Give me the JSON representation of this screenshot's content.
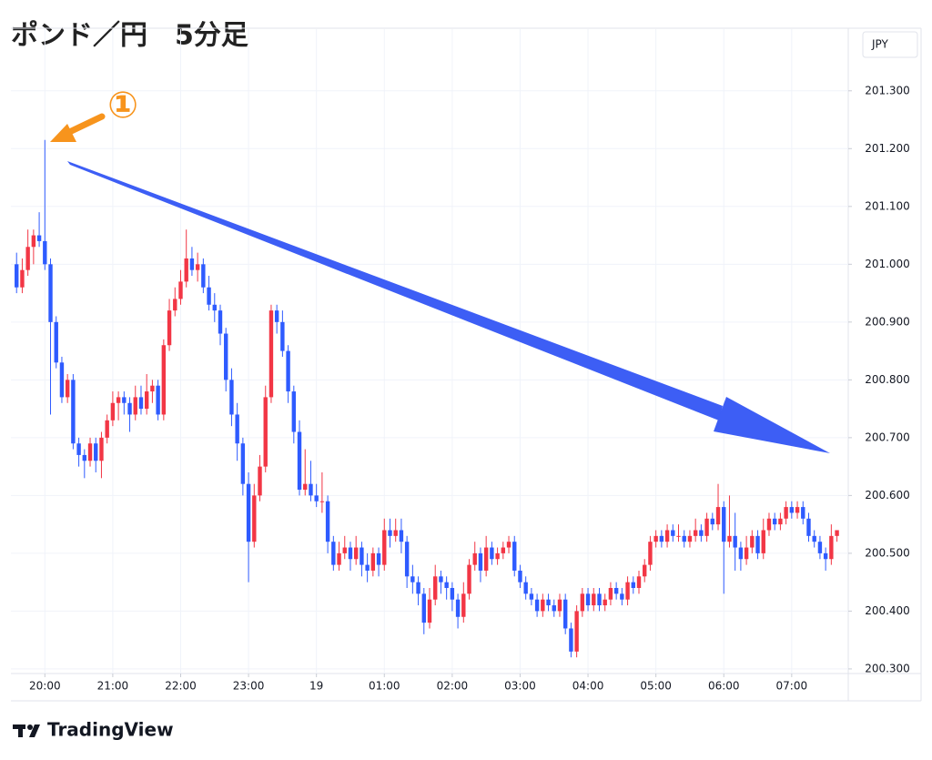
{
  "chart_data": {
    "type": "candlestick",
    "title": "ポンド／円　5分足",
    "currency": "JPY",
    "annotation": "①",
    "brand": "TradingView",
    "up_color": "#f23645",
    "down_color": "#2e5bff",
    "grid": true,
    "xlim": [
      -1,
      147
    ],
    "ylim": [
      200.292,
      201.328
    ],
    "yticks": [
      {
        "value": 200.3,
        "label": "200.300"
      },
      {
        "value": 200.4,
        "label": "200.400"
      },
      {
        "value": 200.5,
        "label": "200.500"
      },
      {
        "value": 200.6,
        "label": "200.600"
      },
      {
        "value": 200.7,
        "label": "200.700"
      },
      {
        "value": 200.8,
        "label": "200.800"
      },
      {
        "value": 200.9,
        "label": "200.900"
      },
      {
        "value": 201.0,
        "label": "201.000"
      },
      {
        "value": 201.1,
        "label": "201.100"
      },
      {
        "value": 201.2,
        "label": "201.200"
      },
      {
        "value": 201.3,
        "label": "201.300"
      }
    ],
    "xticks": [
      {
        "value": 5,
        "label": "20:00"
      },
      {
        "value": 17,
        "label": "21:00"
      },
      {
        "value": 29,
        "label": "22:00"
      },
      {
        "value": 41,
        "label": "23:00"
      },
      {
        "value": 53,
        "label": "19"
      },
      {
        "value": 65,
        "label": "01:00"
      },
      {
        "value": 77,
        "label": "02:00"
      },
      {
        "value": 89,
        "label": "03:00"
      },
      {
        "value": 101,
        "label": "04:00"
      },
      {
        "value": 113,
        "label": "05:00"
      },
      {
        "value": 125,
        "label": "06:00"
      },
      {
        "value": 137,
        "label": "07:00"
      }
    ],
    "ohlc": [
      [
        201.0,
        201.02,
        200.95,
        200.96
      ],
      [
        200.96,
        201.01,
        200.95,
        200.99
      ],
      [
        200.99,
        201.06,
        200.98,
        201.03
      ],
      [
        201.03,
        201.06,
        201.0,
        201.05
      ],
      [
        201.05,
        201.09,
        201.03,
        201.04
      ],
      [
        201.04,
        201.215,
        200.99,
        201.0
      ],
      [
        201.0,
        201.01,
        200.74,
        200.9
      ],
      [
        200.9,
        200.91,
        200.82,
        200.83
      ],
      [
        200.83,
        200.84,
        200.76,
        200.77
      ],
      [
        200.77,
        200.81,
        200.76,
        200.8
      ],
      [
        200.8,
        200.81,
        200.68,
        200.69
      ],
      [
        200.69,
        200.7,
        200.65,
        200.67
      ],
      [
        200.67,
        200.68,
        200.63,
        200.66
      ],
      [
        200.66,
        200.7,
        200.65,
        200.69
      ],
      [
        200.69,
        200.7,
        200.64,
        200.66
      ],
      [
        200.66,
        200.71,
        200.63,
        200.7
      ],
      [
        200.7,
        200.74,
        200.69,
        200.73
      ],
      [
        200.73,
        200.78,
        200.72,
        200.76
      ],
      [
        200.76,
        200.78,
        200.73,
        200.77
      ],
      [
        200.77,
        200.78,
        200.74,
        200.76
      ],
      [
        200.76,
        200.77,
        200.71,
        200.74
      ],
      [
        200.74,
        200.79,
        200.73,
        200.77
      ],
      [
        200.77,
        200.79,
        200.74,
        200.75
      ],
      [
        200.75,
        200.81,
        200.74,
        200.78
      ],
      [
        200.78,
        200.8,
        200.76,
        200.79
      ],
      [
        200.79,
        200.8,
        200.73,
        200.74
      ],
      [
        200.74,
        200.87,
        200.73,
        200.86
      ],
      [
        200.86,
        200.94,
        200.85,
        200.92
      ],
      [
        200.92,
        200.96,
        200.91,
        200.94
      ],
      [
        200.94,
        200.99,
        200.93,
        200.97
      ],
      [
        200.97,
        201.06,
        200.96,
        201.01
      ],
      [
        201.01,
        201.03,
        200.98,
        200.99
      ],
      [
        200.99,
        201.02,
        200.97,
        201.0
      ],
      [
        201.0,
        201.01,
        200.95,
        200.96
      ],
      [
        200.96,
        200.98,
        200.92,
        200.93
      ],
      [
        200.93,
        200.95,
        200.9,
        200.92
      ],
      [
        200.92,
        200.93,
        200.86,
        200.88
      ],
      [
        200.88,
        200.89,
        200.78,
        200.8
      ],
      [
        200.8,
        200.82,
        200.72,
        200.74
      ],
      [
        200.74,
        200.76,
        200.66,
        200.69
      ],
      [
        200.69,
        200.7,
        200.6,
        200.62
      ],
      [
        200.62,
        200.64,
        200.45,
        200.52
      ],
      [
        200.52,
        200.62,
        200.51,
        200.6
      ],
      [
        200.6,
        200.67,
        200.59,
        200.65
      ],
      [
        200.65,
        200.79,
        200.64,
        200.77
      ],
      [
        200.77,
        200.93,
        200.76,
        200.92
      ],
      [
        200.92,
        200.93,
        200.88,
        200.9
      ],
      [
        200.9,
        200.92,
        200.84,
        200.85
      ],
      [
        200.85,
        200.86,
        200.76,
        200.78
      ],
      [
        200.78,
        200.79,
        200.69,
        200.71
      ],
      [
        200.71,
        200.73,
        200.6,
        200.61
      ],
      [
        200.61,
        200.68,
        200.6,
        200.62
      ],
      [
        200.62,
        200.66,
        200.59,
        200.6
      ],
      [
        200.6,
        200.62,
        200.58,
        200.59
      ],
      [
        200.59,
        200.64,
        200.57,
        200.59
      ],
      [
        200.59,
        200.6,
        200.5,
        200.52
      ],
      [
        200.52,
        200.53,
        200.47,
        200.48
      ],
      [
        200.48,
        200.52,
        200.47,
        200.5
      ],
      [
        200.5,
        200.53,
        200.49,
        200.51
      ],
      [
        200.51,
        200.52,
        200.47,
        200.49
      ],
      [
        200.49,
        200.53,
        200.48,
        200.51
      ],
      [
        200.51,
        200.52,
        200.46,
        200.48
      ],
      [
        200.48,
        200.5,
        200.45,
        200.47
      ],
      [
        200.47,
        200.51,
        200.46,
        200.5
      ],
      [
        200.5,
        200.51,
        200.46,
        200.48
      ],
      [
        200.48,
        200.56,
        200.47,
        200.54
      ],
      [
        200.54,
        200.56,
        200.51,
        200.53
      ],
      [
        200.53,
        200.56,
        200.52,
        200.54
      ],
      [
        200.54,
        200.56,
        200.5,
        200.52
      ],
      [
        200.52,
        200.53,
        200.44,
        200.46
      ],
      [
        200.46,
        200.48,
        200.43,
        200.45
      ],
      [
        200.45,
        200.46,
        200.41,
        200.43
      ],
      [
        200.43,
        200.44,
        200.36,
        200.38
      ],
      [
        200.38,
        200.44,
        200.37,
        200.42
      ],
      [
        200.42,
        200.48,
        200.41,
        200.46
      ],
      [
        200.46,
        200.47,
        200.43,
        200.45
      ],
      [
        200.45,
        200.46,
        200.42,
        200.44
      ],
      [
        200.44,
        200.45,
        200.4,
        200.42
      ],
      [
        200.42,
        200.43,
        200.37,
        200.39
      ],
      [
        200.39,
        200.45,
        200.38,
        200.43
      ],
      [
        200.43,
        200.49,
        200.42,
        200.48
      ],
      [
        200.48,
        200.52,
        200.47,
        200.5
      ],
      [
        200.5,
        200.51,
        200.45,
        200.47
      ],
      [
        200.47,
        200.53,
        200.46,
        200.51
      ],
      [
        200.51,
        200.52,
        200.48,
        200.49
      ],
      [
        200.49,
        200.51,
        200.48,
        200.5
      ],
      [
        200.5,
        200.52,
        200.49,
        200.51
      ],
      [
        200.51,
        200.53,
        200.5,
        200.52
      ],
      [
        200.52,
        200.53,
        200.46,
        200.47
      ],
      [
        200.47,
        200.48,
        200.44,
        200.45
      ],
      [
        200.45,
        200.46,
        200.42,
        200.43
      ],
      [
        200.43,
        200.44,
        200.41,
        200.42
      ],
      [
        200.42,
        200.43,
        200.39,
        200.4
      ],
      [
        200.4,
        200.43,
        200.39,
        200.42
      ],
      [
        200.42,
        200.43,
        200.4,
        200.41
      ],
      [
        200.41,
        200.42,
        200.39,
        200.4
      ],
      [
        200.4,
        200.43,
        200.39,
        200.42
      ],
      [
        200.42,
        200.43,
        200.36,
        200.37
      ],
      [
        200.37,
        200.38,
        200.32,
        200.33
      ],
      [
        200.33,
        200.41,
        200.32,
        200.4
      ],
      [
        200.4,
        200.44,
        200.39,
        200.43
      ],
      [
        200.43,
        200.44,
        200.4,
        200.41
      ],
      [
        200.41,
        200.44,
        200.4,
        200.43
      ],
      [
        200.43,
        200.44,
        200.4,
        200.41
      ],
      [
        200.41,
        200.43,
        200.4,
        200.42
      ],
      [
        200.42,
        200.45,
        200.41,
        200.44
      ],
      [
        200.44,
        200.45,
        200.42,
        200.43
      ],
      [
        200.43,
        200.44,
        200.41,
        200.42
      ],
      [
        200.42,
        200.46,
        200.41,
        200.45
      ],
      [
        200.45,
        200.46,
        200.43,
        200.44
      ],
      [
        200.44,
        200.47,
        200.43,
        200.46
      ],
      [
        200.46,
        200.49,
        200.45,
        200.48
      ],
      [
        200.48,
        200.53,
        200.47,
        200.52
      ],
      [
        200.52,
        200.54,
        200.51,
        200.53
      ],
      [
        200.53,
        200.54,
        200.51,
        200.52
      ],
      [
        200.52,
        200.55,
        200.51,
        200.54
      ],
      [
        200.54,
        200.55,
        200.52,
        200.53
      ],
      [
        200.53,
        200.55,
        200.52,
        200.53
      ],
      [
        200.53,
        200.54,
        200.51,
        200.52
      ],
      [
        200.52,
        200.54,
        200.51,
        200.53
      ],
      [
        200.53,
        200.56,
        200.52,
        200.54
      ],
      [
        200.54,
        200.55,
        200.52,
        200.53
      ],
      [
        200.53,
        200.57,
        200.52,
        200.56
      ],
      [
        200.56,
        200.57,
        200.54,
        200.55
      ],
      [
        200.55,
        200.62,
        200.54,
        200.58
      ],
      [
        200.58,
        200.59,
        200.43,
        200.52
      ],
      [
        200.52,
        200.6,
        200.51,
        200.53
      ],
      [
        200.53,
        200.57,
        200.47,
        200.51
      ],
      [
        200.51,
        200.52,
        200.47,
        200.49
      ],
      [
        200.49,
        200.53,
        200.48,
        200.51
      ],
      [
        200.51,
        200.54,
        200.5,
        200.53
      ],
      [
        200.53,
        200.54,
        200.49,
        200.5
      ],
      [
        200.5,
        200.56,
        200.49,
        200.54
      ],
      [
        200.54,
        200.57,
        200.53,
        200.56
      ],
      [
        200.56,
        200.57,
        200.54,
        200.55
      ],
      [
        200.55,
        200.57,
        200.54,
        200.56
      ],
      [
        200.56,
        200.59,
        200.55,
        200.58
      ],
      [
        200.58,
        200.59,
        200.56,
        200.57
      ],
      [
        200.57,
        200.59,
        200.56,
        200.58
      ],
      [
        200.58,
        200.59,
        200.55,
        200.56
      ],
      [
        200.56,
        200.57,
        200.52,
        200.53
      ],
      [
        200.53,
        200.54,
        200.51,
        200.52
      ],
      [
        200.52,
        200.53,
        200.49,
        200.5
      ],
      [
        200.5,
        200.51,
        200.47,
        200.49
      ],
      [
        200.49,
        200.55,
        200.48,
        200.53
      ],
      [
        200.53,
        200.54,
        200.52,
        200.54
      ]
    ]
  }
}
